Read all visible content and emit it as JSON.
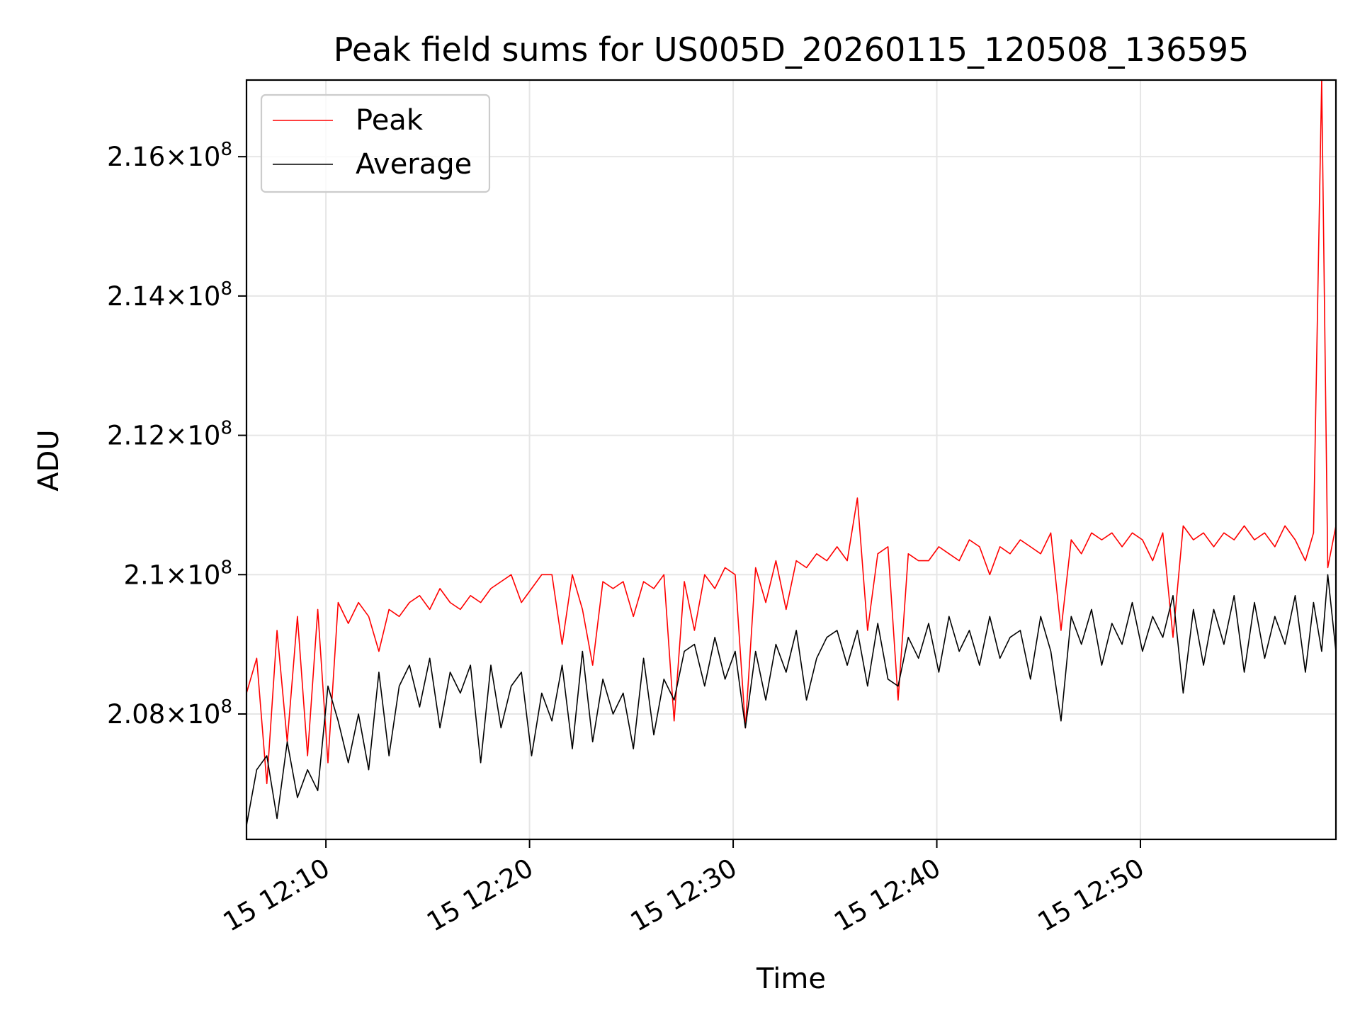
{
  "chart_data": {
    "type": "line",
    "title": "Peak field sums for US005D_20260115_120508_136595",
    "xlabel": "Time",
    "ylabel": "ADU",
    "grid": true,
    "legend_position": "top-left",
    "x_unit": "minutes after 12:00",
    "xlim": [
      6.1,
      59.6
    ],
    "ylim": [
      206.2,
      217.1
    ],
    "y_scale_factor": 1000000,
    "x_ticks": [
      {
        "value": 10,
        "label": "15 12:10"
      },
      {
        "value": 20,
        "label": "15 12:20"
      },
      {
        "value": 30,
        "label": "15 12:30"
      },
      {
        "value": 40,
        "label": "15 12:40"
      },
      {
        "value": 50,
        "label": "15 12:50"
      }
    ],
    "y_ticks": [
      {
        "value": 208,
        "mantissa": "2.08",
        "exponent": "8"
      },
      {
        "value": 210,
        "mantissa": "2.1",
        "exponent": "8"
      },
      {
        "value": 212,
        "mantissa": "2.12",
        "exponent": "8"
      },
      {
        "value": 214,
        "mantissa": "2.14",
        "exponent": "8"
      },
      {
        "value": 216,
        "mantissa": "2.16",
        "exponent": "8"
      }
    ],
    "times": [
      6.1,
      6.6,
      7.1,
      7.6,
      8.1,
      8.6,
      9.1,
      9.6,
      10.1,
      10.6,
      11.1,
      11.6,
      12.1,
      12.6,
      13.1,
      13.6,
      14.1,
      14.6,
      15.1,
      15.6,
      16.1,
      16.6,
      17.1,
      17.6,
      18.1,
      18.6,
      19.1,
      19.6,
      20.1,
      20.6,
      21.1,
      21.6,
      22.1,
      22.6,
      23.1,
      23.6,
      24.1,
      24.6,
      25.1,
      25.6,
      26.1,
      26.6,
      27.1,
      27.6,
      28.1,
      28.6,
      29.1,
      29.6,
      30.1,
      30.6,
      31.1,
      31.6,
      32.1,
      32.6,
      33.1,
      33.6,
      34.1,
      34.6,
      35.1,
      35.6,
      36.1,
      36.6,
      37.1,
      37.6,
      38.1,
      38.6,
      39.1,
      39.6,
      40.1,
      40.6,
      41.1,
      41.6,
      42.1,
      42.6,
      43.1,
      43.6,
      44.1,
      44.6,
      45.1,
      45.6,
      46.1,
      46.6,
      47.1,
      47.6,
      48.1,
      48.6,
      49.1,
      49.6,
      50.1,
      50.6,
      51.1,
      51.6,
      52.1,
      52.6,
      53.1,
      53.6,
      54.1,
      54.6,
      55.1,
      55.6,
      56.1,
      56.6,
      57.1,
      57.6,
      58.1,
      58.5,
      58.9,
      59.2,
      59.6
    ],
    "series": [
      {
        "name": "Peak",
        "color": "#ff0000",
        "values": [
          208.3,
          208.8,
          207.0,
          209.2,
          207.6,
          209.4,
          207.4,
          209.5,
          207.3,
          209.6,
          209.3,
          209.6,
          209.4,
          208.9,
          209.5,
          209.4,
          209.6,
          209.7,
          209.5,
          209.8,
          209.6,
          209.5,
          209.7,
          209.6,
          209.8,
          209.9,
          210.0,
          209.6,
          209.8,
          210.0,
          210.0,
          209.0,
          210.0,
          209.5,
          208.7,
          209.9,
          209.8,
          209.9,
          209.4,
          209.9,
          209.8,
          210.0,
          207.9,
          209.9,
          209.2,
          210.0,
          209.8,
          210.1,
          210.0,
          207.8,
          210.1,
          209.6,
          210.2,
          209.5,
          210.2,
          210.1,
          210.3,
          210.2,
          210.4,
          210.2,
          211.1,
          209.2,
          210.3,
          210.4,
          208.2,
          210.3,
          210.2,
          210.2,
          210.4,
          210.3,
          210.2,
          210.5,
          210.4,
          210.0,
          210.4,
          210.3,
          210.5,
          210.4,
          210.3,
          210.6,
          209.2,
          210.5,
          210.3,
          210.6,
          210.5,
          210.6,
          210.4,
          210.6,
          210.5,
          210.2,
          210.6,
          209.1,
          210.7,
          210.5,
          210.6,
          210.4,
          210.6,
          210.5,
          210.7,
          210.5,
          210.6,
          210.4,
          210.7,
          210.5,
          210.2,
          210.6,
          217.1,
          210.1,
          210.7
        ]
      },
      {
        "name": "Average",
        "color": "#000000",
        "values": [
          206.4,
          207.2,
          207.4,
          206.5,
          207.6,
          206.8,
          207.2,
          206.9,
          208.4,
          207.9,
          207.3,
          208.0,
          207.2,
          208.6,
          207.4,
          208.4,
          208.7,
          208.1,
          208.8,
          207.8,
          208.6,
          208.3,
          208.7,
          207.3,
          208.7,
          207.8,
          208.4,
          208.6,
          207.4,
          208.3,
          207.9,
          208.7,
          207.5,
          208.9,
          207.6,
          208.5,
          208.0,
          208.3,
          207.5,
          208.8,
          207.7,
          208.5,
          208.2,
          208.9,
          209.0,
          208.4,
          209.1,
          208.5,
          208.9,
          207.8,
          208.9,
          208.2,
          209.0,
          208.6,
          209.2,
          208.2,
          208.8,
          209.1,
          209.2,
          208.7,
          209.2,
          208.4,
          209.3,
          208.5,
          208.4,
          209.1,
          208.8,
          209.3,
          208.6,
          209.4,
          208.9,
          209.2,
          208.7,
          209.4,
          208.8,
          209.1,
          209.2,
          208.5,
          209.4,
          208.9,
          207.9,
          209.4,
          209.0,
          209.5,
          208.7,
          209.3,
          209.0,
          209.6,
          208.9,
          209.4,
          209.1,
          209.7,
          208.3,
          209.5,
          208.7,
          209.5,
          209.0,
          209.7,
          208.6,
          209.6,
          208.8,
          209.4,
          209.0,
          209.7,
          208.6,
          209.6,
          208.9,
          210.0,
          208.9
        ]
      }
    ]
  }
}
